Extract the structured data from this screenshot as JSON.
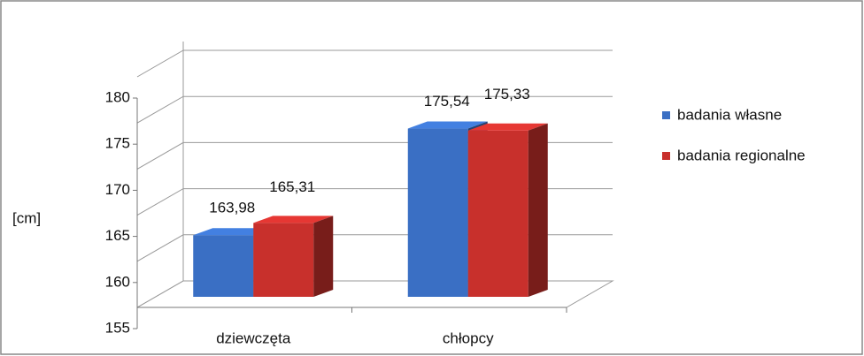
{
  "chart_data": {
    "type": "bar3d",
    "y_label": "[cm]",
    "categories": [
      "dziewczęta",
      "chłopcy"
    ],
    "series": [
      {
        "name": "badania własne",
        "color": "#3a6fc4",
        "values": [
          163.98,
          175.54
        ],
        "value_labels": [
          "163,98",
          "175,54"
        ]
      },
      {
        "name": "badania regionalne",
        "color": "#c8302c",
        "values": [
          165.31,
          175.33
        ],
        "value_labels": [
          "165,31",
          "175,33"
        ]
      }
    ],
    "ylim": [
      155,
      180
    ],
    "yticks": [
      155,
      160,
      165,
      170,
      175,
      180
    ],
    "grid": true,
    "legend": "right"
  }
}
